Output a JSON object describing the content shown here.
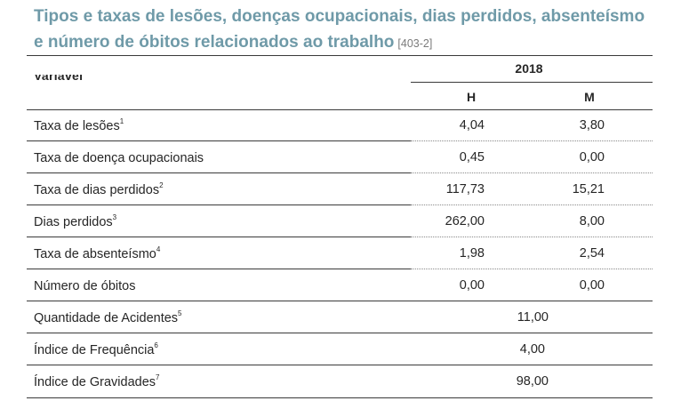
{
  "title": {
    "line1": "Tipos e  taxas de lesões, doenças ocupacionais, dias perdidos, absenteísmo",
    "line2": "e número de óbitos relacionados ao trabalho",
    "reference": "[403-2]"
  },
  "table": {
    "variable_header": "Variável",
    "year_header": "2018",
    "col_h": "H",
    "col_m": "M",
    "rows": [
      {
        "label": "Taxa de lesões",
        "sup": "1",
        "h": "4,04",
        "m": "3,80"
      },
      {
        "label": "Taxa de doença ocupacionais",
        "sup": "",
        "h": "0,45",
        "m": "0,00"
      },
      {
        "label": "Taxa de dias perdidos",
        "sup": "2",
        "h": "117,73",
        "m": "15,21"
      },
      {
        "label": "Dias perdidos",
        "sup": "3",
        "h": "262,00",
        "m": "8,00"
      },
      {
        "label": "Taxa de absenteísmo",
        "sup": "4",
        "h": "1,98",
        "m": "2,54"
      },
      {
        "label": "Número de óbitos",
        "sup": "",
        "h": "0,00",
        "m": "0,00"
      }
    ],
    "merged_rows": [
      {
        "label": "Quantidade de Acidentes",
        "sup": "5",
        "value": "11,00"
      },
      {
        "label": "Índice de Frequência",
        "sup": "6",
        "value": "4,00"
      },
      {
        "label": "Índice de Gravidades",
        "sup": "7",
        "value": "98,00"
      }
    ]
  }
}
